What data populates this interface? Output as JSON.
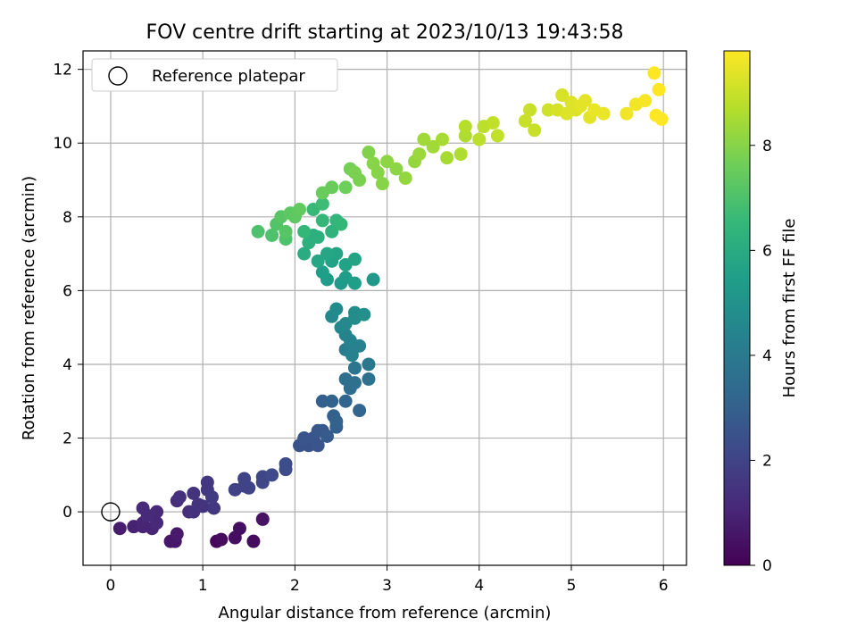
{
  "chart_data": {
    "type": "scatter",
    "title": "FOV centre drift starting at 2023/10/13 19:43:58",
    "xlabel": "Angular distance from reference (arcmin)",
    "ylabel": "Rotation from reference (arcmin)",
    "xlim": [
      -0.3,
      6.25
    ],
    "ylim": [
      -1.45,
      12.5
    ],
    "xticks": [
      0,
      1,
      2,
      3,
      4,
      5,
      6
    ],
    "yticks": [
      0,
      2,
      4,
      6,
      8,
      10,
      12
    ],
    "grid": true,
    "legend": {
      "placement": "top-left",
      "entries": [
        "Reference platepar"
      ]
    },
    "reference_point": {
      "x": 0,
      "y": 0,
      "label": "Reference platepar"
    },
    "colorbar": {
      "label": "Hours from first FF file",
      "colormap": "viridis",
      "range": [
        0,
        9.8
      ],
      "ticks": [
        0,
        2,
        4,
        6,
        8
      ]
    },
    "points": [
      {
        "x": 1.15,
        "y": -0.8,
        "c": 0.2
      },
      {
        "x": 1.2,
        "y": -0.75,
        "c": 0.3
      },
      {
        "x": 1.35,
        "y": -0.7,
        "c": 0.35
      },
      {
        "x": 1.4,
        "y": -0.45,
        "c": 0.4
      },
      {
        "x": 1.55,
        "y": -0.8,
        "c": 0.3
      },
      {
        "x": 1.65,
        "y": -0.2,
        "c": 0.5
      },
      {
        "x": 0.65,
        "y": -0.8,
        "c": 0.6
      },
      {
        "x": 0.7,
        "y": -0.8,
        "c": 0.6
      },
      {
        "x": 0.72,
        "y": -0.6,
        "c": 0.7
      },
      {
        "x": 0.1,
        "y": -0.45,
        "c": 0.8
      },
      {
        "x": 0.25,
        "y": -0.4,
        "c": 0.9
      },
      {
        "x": 0.35,
        "y": -0.4,
        "c": 1.0
      },
      {
        "x": 0.45,
        "y": -0.45,
        "c": 1.0
      },
      {
        "x": 0.5,
        "y": -0.3,
        "c": 1.1
      },
      {
        "x": 0.35,
        "y": -0.3,
        "c": 1.0
      },
      {
        "x": 0.5,
        "y": 0.0,
        "c": 1.1
      },
      {
        "x": 0.4,
        "y": -0.1,
        "c": 1.2
      },
      {
        "x": 0.35,
        "y": 0.1,
        "c": 1.2
      },
      {
        "x": 0.72,
        "y": 0.3,
        "c": 1.3
      },
      {
        "x": 0.75,
        "y": 0.4,
        "c": 1.4
      },
      {
        "x": 0.85,
        "y": 0.0,
        "c": 1.3
      },
      {
        "x": 0.9,
        "y": 0.0,
        "c": 1.4
      },
      {
        "x": 0.95,
        "y": 0.2,
        "c": 1.5
      },
      {
        "x": 1.0,
        "y": 0.15,
        "c": 1.5
      },
      {
        "x": 0.9,
        "y": 0.5,
        "c": 1.5
      },
      {
        "x": 1.05,
        "y": 0.6,
        "c": 1.6
      },
      {
        "x": 1.05,
        "y": 0.8,
        "c": 1.6
      },
      {
        "x": 1.1,
        "y": 0.4,
        "c": 1.7
      },
      {
        "x": 1.12,
        "y": 0.1,
        "c": 1.6
      },
      {
        "x": 1.35,
        "y": 0.6,
        "c": 1.9
      },
      {
        "x": 1.45,
        "y": 0.7,
        "c": 1.9
      },
      {
        "x": 1.5,
        "y": 0.65,
        "c": 2.0
      },
      {
        "x": 1.45,
        "y": 0.9,
        "c": 2.0
      },
      {
        "x": 1.65,
        "y": 0.95,
        "c": 2.1
      },
      {
        "x": 1.65,
        "y": 0.8,
        "c": 2.1
      },
      {
        "x": 1.75,
        "y": 1.0,
        "c": 2.2
      },
      {
        "x": 1.9,
        "y": 1.15,
        "c": 2.3
      },
      {
        "x": 1.9,
        "y": 1.3,
        "c": 2.3
      },
      {
        "x": 2.05,
        "y": 1.8,
        "c": 2.5
      },
      {
        "x": 2.1,
        "y": 2.0,
        "c": 2.6
      },
      {
        "x": 2.15,
        "y": 1.8,
        "c": 2.5
      },
      {
        "x": 2.2,
        "y": 2.0,
        "c": 2.6
      },
      {
        "x": 2.25,
        "y": 1.8,
        "c": 2.6
      },
      {
        "x": 2.25,
        "y": 2.2,
        "c": 2.7
      },
      {
        "x": 2.3,
        "y": 2.2,
        "c": 2.7
      },
      {
        "x": 2.35,
        "y": 2.05,
        "c": 2.8
      },
      {
        "x": 2.3,
        "y": 3.0,
        "c": 3.0
      },
      {
        "x": 2.4,
        "y": 3.0,
        "c": 3.1
      },
      {
        "x": 2.42,
        "y": 2.6,
        "c": 3.0
      },
      {
        "x": 2.45,
        "y": 2.3,
        "c": 3.0
      },
      {
        "x": 2.45,
        "y": 2.45,
        "c": 3.1
      },
      {
        "x": 2.55,
        "y": 3.0,
        "c": 3.2
      },
      {
        "x": 2.7,
        "y": 2.75,
        "c": 3.2
      },
      {
        "x": 2.55,
        "y": 3.6,
        "c": 3.5
      },
      {
        "x": 2.6,
        "y": 3.35,
        "c": 3.5
      },
      {
        "x": 2.65,
        "y": 3.5,
        "c": 3.6
      },
      {
        "x": 2.8,
        "y": 3.6,
        "c": 3.7
      },
      {
        "x": 2.65,
        "y": 3.9,
        "c": 3.8
      },
      {
        "x": 2.8,
        "y": 4.0,
        "c": 3.9
      },
      {
        "x": 2.55,
        "y": 4.4,
        "c": 4.1
      },
      {
        "x": 2.6,
        "y": 4.35,
        "c": 4.2
      },
      {
        "x": 2.62,
        "y": 4.25,
        "c": 4.3
      },
      {
        "x": 2.7,
        "y": 4.5,
        "c": 4.3
      },
      {
        "x": 2.55,
        "y": 4.8,
        "c": 4.4
      },
      {
        "x": 2.6,
        "y": 4.65,
        "c": 4.4
      },
      {
        "x": 2.5,
        "y": 5.0,
        "c": 4.5
      },
      {
        "x": 2.4,
        "y": 5.3,
        "c": 4.6
      },
      {
        "x": 2.45,
        "y": 5.5,
        "c": 4.7
      },
      {
        "x": 2.55,
        "y": 5.1,
        "c": 4.6
      },
      {
        "x": 2.65,
        "y": 5.4,
        "c": 4.8
      },
      {
        "x": 2.65,
        "y": 5.25,
        "c": 4.8
      },
      {
        "x": 2.75,
        "y": 5.35,
        "c": 4.9
      },
      {
        "x": 2.85,
        "y": 6.3,
        "c": 5.2
      },
      {
        "x": 2.5,
        "y": 6.2,
        "c": 5.3
      },
      {
        "x": 2.35,
        "y": 6.3,
        "c": 5.4
      },
      {
        "x": 2.55,
        "y": 6.35,
        "c": 5.4
      },
      {
        "x": 2.65,
        "y": 6.2,
        "c": 5.5
      },
      {
        "x": 2.3,
        "y": 6.5,
        "c": 5.5
      },
      {
        "x": 2.4,
        "y": 6.8,
        "c": 5.6
      },
      {
        "x": 2.55,
        "y": 6.7,
        "c": 5.6
      },
      {
        "x": 2.65,
        "y": 6.85,
        "c": 5.7
      },
      {
        "x": 2.45,
        "y": 7.0,
        "c": 5.7
      },
      {
        "x": 2.35,
        "y": 7.0,
        "c": 5.8
      },
      {
        "x": 2.25,
        "y": 6.8,
        "c": 5.8
      },
      {
        "x": 2.2,
        "y": 7.5,
        "c": 6.1
      },
      {
        "x": 2.25,
        "y": 7.45,
        "c": 6.2
      },
      {
        "x": 2.1,
        "y": 7.0,
        "c": 6.0
      },
      {
        "x": 2.15,
        "y": 7.3,
        "c": 6.2
      },
      {
        "x": 2.4,
        "y": 7.6,
        "c": 6.3
      },
      {
        "x": 2.45,
        "y": 7.9,
        "c": 6.4
      },
      {
        "x": 2.5,
        "y": 7.8,
        "c": 6.5
      },
      {
        "x": 2.3,
        "y": 7.9,
        "c": 6.5
      },
      {
        "x": 2.1,
        "y": 7.6,
        "c": 6.5
      },
      {
        "x": 2.2,
        "y": 8.2,
        "c": 6.6
      },
      {
        "x": 2.3,
        "y": 8.35,
        "c": 6.7
      },
      {
        "x": 1.6,
        "y": 7.6,
        "c": 7.0
      },
      {
        "x": 1.75,
        "y": 7.5,
        "c": 7.0
      },
      {
        "x": 1.8,
        "y": 7.8,
        "c": 7.1
      },
      {
        "x": 1.85,
        "y": 8.0,
        "c": 7.2
      },
      {
        "x": 1.9,
        "y": 7.6,
        "c": 7.2
      },
      {
        "x": 1.95,
        "y": 8.1,
        "c": 7.3
      },
      {
        "x": 2.0,
        "y": 8.0,
        "c": 7.3
      },
      {
        "x": 2.05,
        "y": 8.2,
        "c": 7.4
      },
      {
        "x": 1.9,
        "y": 7.4,
        "c": 7.0
      },
      {
        "x": 2.3,
        "y": 8.65,
        "c": 7.5
      },
      {
        "x": 2.4,
        "y": 8.8,
        "c": 7.5
      },
      {
        "x": 2.55,
        "y": 8.8,
        "c": 7.6
      },
      {
        "x": 2.6,
        "y": 9.3,
        "c": 7.7
      },
      {
        "x": 2.65,
        "y": 9.2,
        "c": 7.8
      },
      {
        "x": 2.7,
        "y": 9.0,
        "c": 7.8
      },
      {
        "x": 2.8,
        "y": 9.75,
        "c": 7.9
      },
      {
        "x": 2.85,
        "y": 9.45,
        "c": 8.0
      },
      {
        "x": 2.9,
        "y": 9.2,
        "c": 8.0
      },
      {
        "x": 2.95,
        "y": 8.9,
        "c": 8.0
      },
      {
        "x": 3.0,
        "y": 9.5,
        "c": 8.1
      },
      {
        "x": 3.1,
        "y": 9.3,
        "c": 8.1
      },
      {
        "x": 3.2,
        "y": 9.05,
        "c": 8.2
      },
      {
        "x": 3.3,
        "y": 9.5,
        "c": 8.2
      },
      {
        "x": 3.35,
        "y": 9.7,
        "c": 8.3
      },
      {
        "x": 3.4,
        "y": 10.1,
        "c": 8.4
      },
      {
        "x": 3.5,
        "y": 9.9,
        "c": 8.4
      },
      {
        "x": 3.6,
        "y": 10.1,
        "c": 8.5
      },
      {
        "x": 3.65,
        "y": 9.6,
        "c": 8.5
      },
      {
        "x": 3.8,
        "y": 9.7,
        "c": 8.6
      },
      {
        "x": 3.85,
        "y": 10.2,
        "c": 8.6
      },
      {
        "x": 3.85,
        "y": 10.45,
        "c": 8.7
      },
      {
        "x": 4.0,
        "y": 10.1,
        "c": 8.8
      },
      {
        "x": 4.05,
        "y": 10.45,
        "c": 8.8
      },
      {
        "x": 4.15,
        "y": 10.55,
        "c": 8.9
      },
      {
        "x": 4.2,
        "y": 10.2,
        "c": 8.9
      },
      {
        "x": 4.5,
        "y": 10.6,
        "c": 9.0
      },
      {
        "x": 4.55,
        "y": 10.9,
        "c": 9.0
      },
      {
        "x": 4.6,
        "y": 10.35,
        "c": 9.0
      },
      {
        "x": 4.75,
        "y": 10.9,
        "c": 9.1
      },
      {
        "x": 4.85,
        "y": 10.9,
        "c": 9.2
      },
      {
        "x": 4.9,
        "y": 11.3,
        "c": 9.2
      },
      {
        "x": 4.95,
        "y": 10.8,
        "c": 9.3
      },
      {
        "x": 5.0,
        "y": 11.1,
        "c": 9.3
      },
      {
        "x": 5.05,
        "y": 10.9,
        "c": 9.3
      },
      {
        "x": 5.1,
        "y": 11.0,
        "c": 9.4
      },
      {
        "x": 5.15,
        "y": 11.15,
        "c": 9.4
      },
      {
        "x": 5.2,
        "y": 10.7,
        "c": 9.4
      },
      {
        "x": 5.25,
        "y": 10.9,
        "c": 9.5
      },
      {
        "x": 5.35,
        "y": 10.8,
        "c": 9.5
      },
      {
        "x": 5.6,
        "y": 10.8,
        "c": 9.6
      },
      {
        "x": 5.7,
        "y": 11.05,
        "c": 9.6
      },
      {
        "x": 5.8,
        "y": 11.15,
        "c": 9.7
      },
      {
        "x": 5.9,
        "y": 11.9,
        "c": 9.8
      },
      {
        "x": 5.95,
        "y": 11.45,
        "c": 9.8
      },
      {
        "x": 5.92,
        "y": 10.75,
        "c": 9.8
      },
      {
        "x": 5.98,
        "y": 10.65,
        "c": 9.8
      }
    ]
  }
}
